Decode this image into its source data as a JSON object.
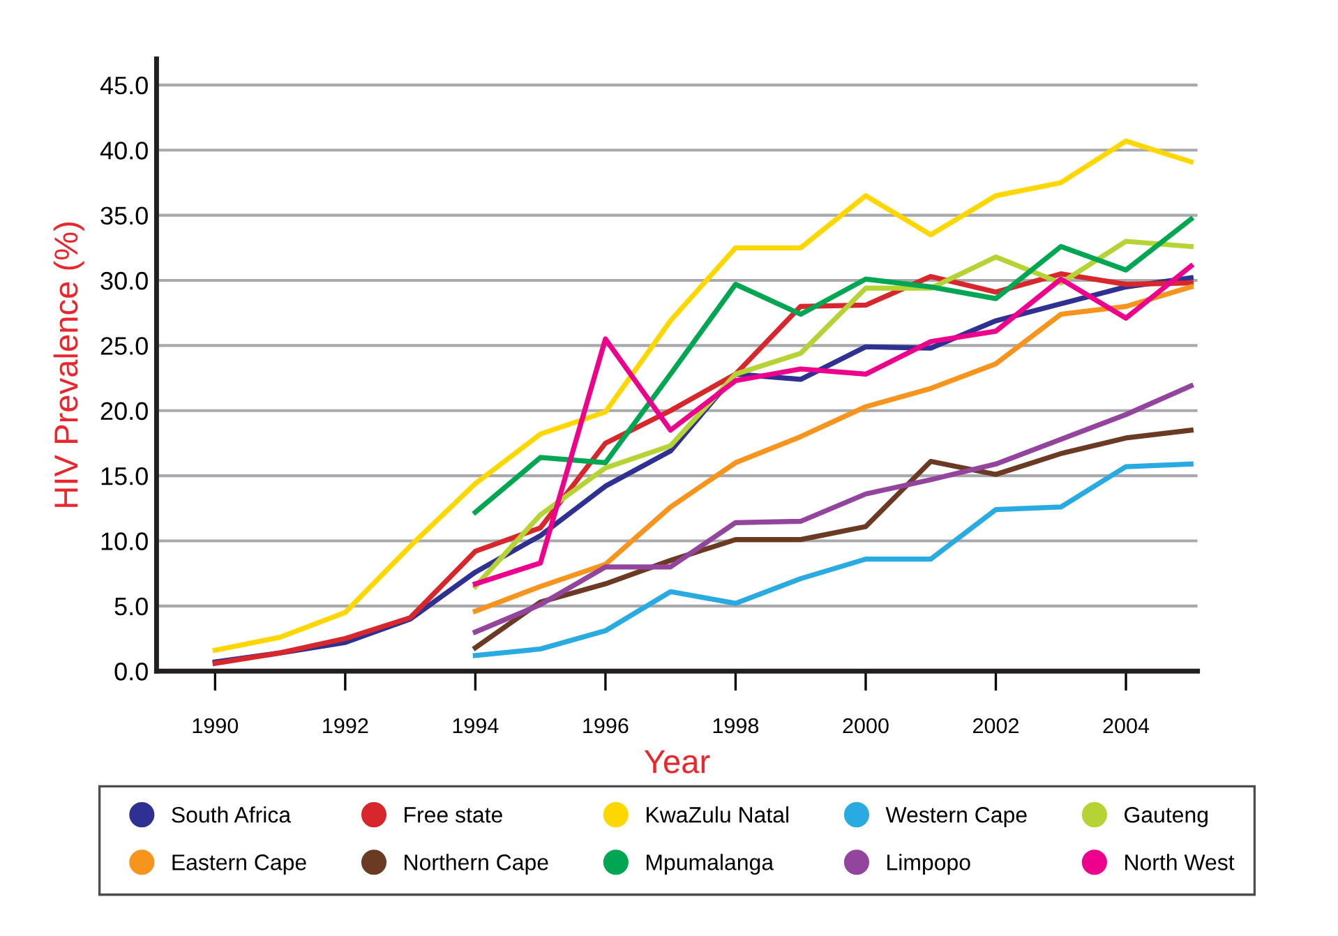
{
  "chart_data": {
    "type": "line",
    "xlabel": "Year",
    "ylabel": "HIV Prevalence (%)",
    "xlim": [
      1989.1,
      2005.1
    ],
    "xticks": [
      1990,
      1992,
      1994,
      1996,
      1998,
      2000,
      2002,
      2004
    ],
    "ylim": [
      0,
      47
    ],
    "yticks": [
      {
        "value": 0,
        "label": "0.0"
      },
      {
        "value": 5,
        "label": "5.0"
      },
      {
        "value": 10,
        "label": "10.0"
      },
      {
        "value": 15,
        "label": "15.0"
      },
      {
        "value": 20,
        "label": "20.0"
      },
      {
        "value": 25,
        "label": "25.0"
      },
      {
        "value": 30,
        "label": "30.0"
      },
      {
        "value": 35,
        "label": "35.0"
      },
      {
        "value": 40,
        "label": "40.0"
      },
      {
        "value": 45,
        "label": "45.0"
      }
    ],
    "grid": "y",
    "legend": "bottom",
    "marker": "none",
    "line_style": "solid",
    "series": [
      {
        "name": "South Africa",
        "color": "#2e3192",
        "x": [
          1990,
          1991,
          1992,
          1993,
          1994,
          1995,
          1996,
          1997,
          1998,
          1999,
          2000,
          2001,
          2002,
          2003,
          2004,
          2005
        ],
        "values": [
          0.7,
          1.4,
          2.2,
          4.0,
          7.6,
          10.4,
          14.2,
          16.9,
          22.8,
          22.4,
          24.9,
          24.8,
          26.9,
          28.2,
          29.5,
          30.2
        ]
      },
      {
        "name": "Free state",
        "color": "#d7262c",
        "x": [
          1990,
          1991,
          1992,
          1993,
          1994,
          1995,
          1996,
          1997,
          1998,
          1999,
          2000,
          2001,
          2002,
          2003,
          2004,
          2005
        ],
        "values": [
          0.6,
          1.4,
          2.5,
          4.1,
          9.2,
          11.0,
          17.5,
          20.0,
          22.8,
          28.0,
          28.1,
          30.3,
          29.1,
          30.5,
          29.7,
          29.8
        ]
      },
      {
        "name": "KwaZulu Natal",
        "color": "#ffd700",
        "x": [
          1990,
          1991,
          1992,
          1993,
          1994,
          1995,
          1996,
          1997,
          1998,
          1999,
          2000,
          2001,
          2002,
          2003,
          2004,
          2005
        ],
        "values": [
          1.6,
          2.6,
          4.5,
          9.6,
          14.4,
          18.2,
          19.9,
          26.9,
          32.5,
          32.5,
          36.5,
          33.5,
          36.5,
          37.5,
          40.7,
          39.1
        ]
      },
      {
        "name": "Western Cape",
        "color": "#29abe2",
        "x": [
          1994,
          1995,
          1996,
          1997,
          1998,
          1999,
          2000,
          2001,
          2002,
          2003,
          2004,
          2005
        ],
        "values": [
          1.2,
          1.7,
          3.1,
          6.1,
          5.2,
          7.1,
          8.6,
          8.6,
          12.4,
          12.6,
          15.7,
          15.9
        ]
      },
      {
        "name": "Gauteng",
        "color": "#b5d334",
        "x": [
          1994,
          1995,
          1996,
          1997,
          1998,
          1999,
          2000,
          2001,
          2002,
          2003,
          2004,
          2005
        ],
        "values": [
          6.5,
          12.0,
          15.6,
          17.3,
          22.8,
          24.4,
          29.4,
          29.4,
          31.8,
          29.8,
          33.0,
          32.6
        ]
      },
      {
        "name": "Eastern Cape",
        "color": "#f7941d",
        "x": [
          1994,
          1995,
          1996,
          1997,
          1998,
          1999,
          2000,
          2001,
          2002,
          2003,
          2004,
          2005
        ],
        "values": [
          4.6,
          6.5,
          8.2,
          12.6,
          16.0,
          18.0,
          20.3,
          21.7,
          23.6,
          27.4,
          28.0,
          29.5
        ]
      },
      {
        "name": "Northern Cape",
        "color": "#6b3a23",
        "x": [
          1994,
          1995,
          1996,
          1997,
          1998,
          1999,
          2000,
          2001,
          2002,
          2003,
          2004,
          2005
        ],
        "values": [
          1.8,
          5.3,
          6.7,
          8.5,
          10.1,
          10.1,
          11.1,
          16.1,
          15.1,
          16.7,
          17.9,
          18.5
        ]
      },
      {
        "name": "Mpumalanga",
        "color": "#00a651",
        "x": [
          1994,
          1995,
          1996,
          1997,
          1998,
          1999,
          2000,
          2001,
          2002,
          2003,
          2004,
          2005
        ],
        "values": [
          12.2,
          16.4,
          16.0,
          22.8,
          29.7,
          27.4,
          30.1,
          29.5,
          28.6,
          32.6,
          30.8,
          34.7
        ]
      },
      {
        "name": "Limpopo",
        "color": "#93449c",
        "x": [
          1994,
          1995,
          1996,
          1997,
          1998,
          1999,
          2000,
          2001,
          2002,
          2003,
          2004,
          2005
        ],
        "values": [
          3.0,
          5.1,
          8.0,
          8.0,
          11.4,
          11.5,
          13.6,
          14.7,
          15.9,
          17.8,
          19.7,
          21.9
        ]
      },
      {
        "name": "North West",
        "color": "#ec008c",
        "x": [
          1994,
          1995,
          1996,
          1997,
          1998,
          1999,
          2000,
          2001,
          2002,
          2003,
          2004,
          2005
        ],
        "values": [
          6.7,
          8.3,
          25.5,
          18.5,
          22.3,
          23.2,
          22.8,
          25.3,
          26.1,
          30.1,
          27.1,
          31.1
        ]
      }
    ]
  }
}
